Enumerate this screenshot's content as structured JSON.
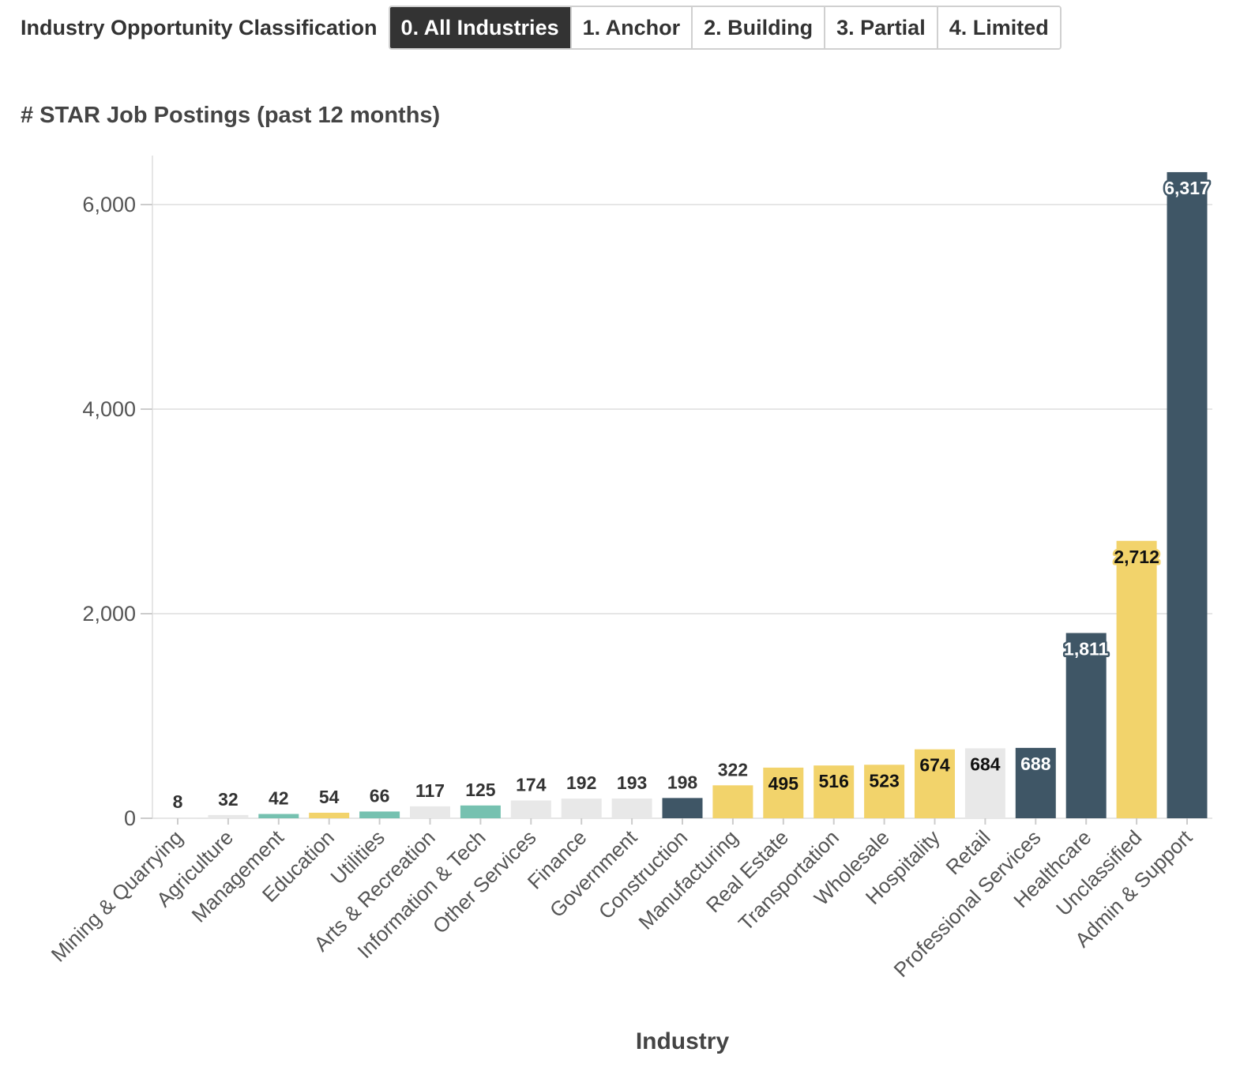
{
  "toolbar": {
    "label": "Industry Opportunity Classification",
    "buttons": [
      {
        "label": "0. All Industries",
        "active": true
      },
      {
        "label": "1. Anchor",
        "active": false
      },
      {
        "label": "2. Building",
        "active": false
      },
      {
        "label": "3. Partial",
        "active": false
      },
      {
        "label": "4. Limited",
        "active": false
      }
    ]
  },
  "chart_data": {
    "type": "bar",
    "title": "# STAR Job Postings (past 12 months)",
    "xlabel": "Industry",
    "ylabel": "",
    "ylim": [
      0,
      6500
    ],
    "yticks": [
      0,
      2000,
      4000,
      6000
    ],
    "ytick_labels": [
      "0",
      "2,000",
      "4,000",
      "6,000"
    ],
    "grid": true,
    "categories": [
      "Mining & Quarrying",
      "Agriculture",
      "Management",
      "Education",
      "Utilities",
      "Arts & Recreation",
      "Information & Tech",
      "Other Services",
      "Finance",
      "Government",
      "Construction",
      "Manufacturing",
      "Real Estate",
      "Transportation",
      "Wholesale",
      "Hospitality",
      "Retail",
      "Professional Services",
      "Healthcare",
      "Unclassified",
      "Admin & Support"
    ],
    "values": [
      8,
      32,
      42,
      54,
      66,
      117,
      125,
      174,
      192,
      193,
      198,
      322,
      495,
      516,
      523,
      674,
      684,
      688,
      1811,
      2712,
      6317
    ],
    "value_labels": [
      "8",
      "32",
      "42",
      "54",
      "66",
      "117",
      "125",
      "174",
      "192",
      "193",
      "198",
      "322",
      "495",
      "516",
      "523",
      "674",
      "684",
      "688",
      "1,811",
      "2,712",
      "6,317"
    ],
    "colors": [
      "#e8e8e8",
      "#e8e8e8",
      "#76c1b0",
      "#f2d36b",
      "#76c1b0",
      "#e8e8e8",
      "#76c1b0",
      "#e8e8e8",
      "#e8e8e8",
      "#e8e8e8",
      "#3f5666",
      "#f2d36b",
      "#f2d36b",
      "#f2d36b",
      "#f2d36b",
      "#f2d36b",
      "#e8e8e8",
      "#3f5666",
      "#3f5666",
      "#f2d36b",
      "#3f5666"
    ]
  }
}
